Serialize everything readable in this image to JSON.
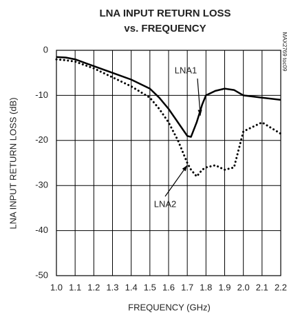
{
  "chart_data": {
    "type": "line",
    "title": [
      "LNA INPUT RETURN LOSS",
      "vs. FREQUENCY"
    ],
    "x_label": "FREQUENCY (GHz)",
    "y_label": "LNA INPUT RETURN LOSS (dB)",
    "side_note": "MAX2769 toc09",
    "x": [
      1.0,
      1.05,
      1.1,
      1.2,
      1.3,
      1.4,
      1.5,
      1.55,
      1.6,
      1.65,
      1.7,
      1.72,
      1.75,
      1.78,
      1.8,
      1.85,
      1.9,
      1.95,
      2.0,
      2.1,
      2.2
    ],
    "series": [
      {
        "name": "LNA1",
        "color": "#000000",
        "style": "solid",
        "values": [
          -1.5,
          -1.6,
          -2,
          -3.5,
          -5,
          -6.5,
          -8.5,
          -10.5,
          -13,
          -16,
          -19,
          -19.2,
          -16,
          -12,
          -10,
          -9,
          -8.5,
          -8.8,
          -10,
          -10.5,
          -11
        ]
      },
      {
        "name": "LNA2",
        "color": "#000000",
        "style": "dotted",
        "values": [
          -2,
          -2.2,
          -2.5,
          -4,
          -6,
          -8,
          -10.5,
          -13,
          -16,
          -20,
          -25,
          -26.5,
          -28,
          -26.5,
          -26,
          -25.5,
          -26.5,
          -26,
          -18,
          -16,
          -18.5
        ]
      }
    ],
    "xlim": [
      1.0,
      2.2
    ],
    "xticks": [
      {
        "value": 1.0,
        "label": "1.0"
      },
      1.1,
      1.2,
      1.3,
      1.4,
      1.5,
      1.6,
      1.7,
      1.8,
      1.9,
      {
        "value": 2.0,
        "label": "2.0"
      },
      2.1,
      2.2
    ],
    "ylim": [
      -50,
      0
    ],
    "yticks": [
      0,
      -10,
      -20,
      -30,
      -40,
      -50
    ],
    "grid": true
  }
}
